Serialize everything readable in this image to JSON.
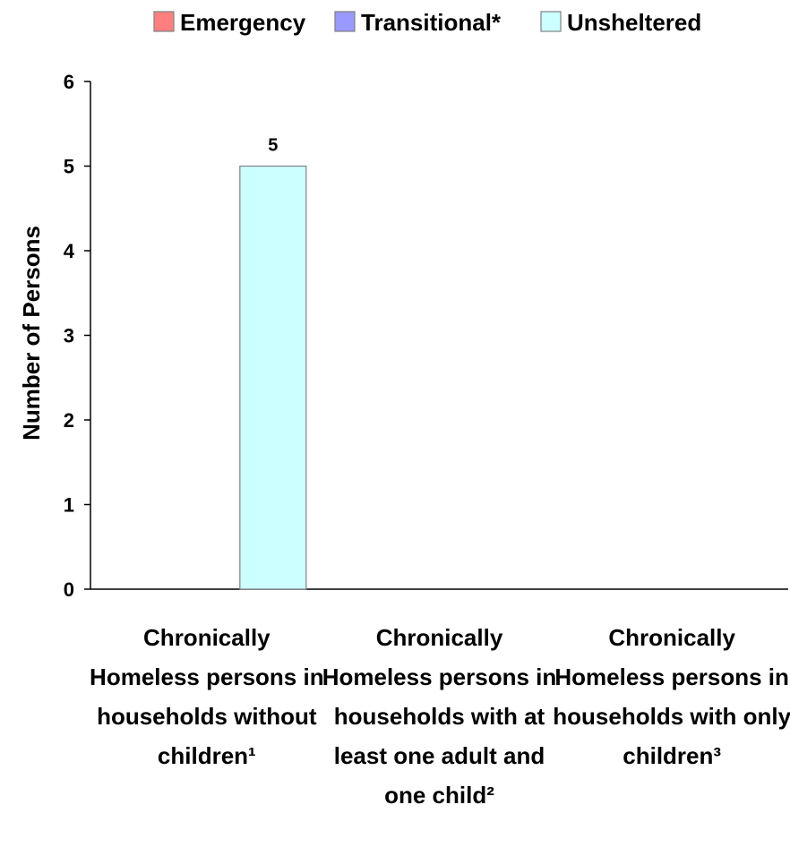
{
  "chart_data": {
    "type": "bar",
    "title": "",
    "ylabel": "Number of Persons",
    "xlabel": "",
    "ylim": [
      0,
      6
    ],
    "yticks": [
      0,
      1,
      2,
      3,
      4,
      5,
      6
    ],
    "grid": false,
    "legend_position": "top",
    "categories": [
      "Chronically Homeless persons in households without children¹",
      "Chronically Homeless persons in households with at least one adult and one child²",
      "Chronically Homeless persons in households with only children³"
    ],
    "series": [
      {
        "name": "Emergency",
        "color": "#FF7F7F",
        "values": [
          0,
          0,
          0
        ]
      },
      {
        "name": "Transitional*",
        "color": "#9999FF",
        "values": [
          0,
          0,
          0
        ]
      },
      {
        "name": "Unsheltered",
        "color": "#CCFFFF",
        "values": [
          5,
          0,
          0
        ]
      }
    ],
    "data_labels": [
      {
        "category_index": 0,
        "series_index": 2,
        "text": "5"
      }
    ]
  }
}
